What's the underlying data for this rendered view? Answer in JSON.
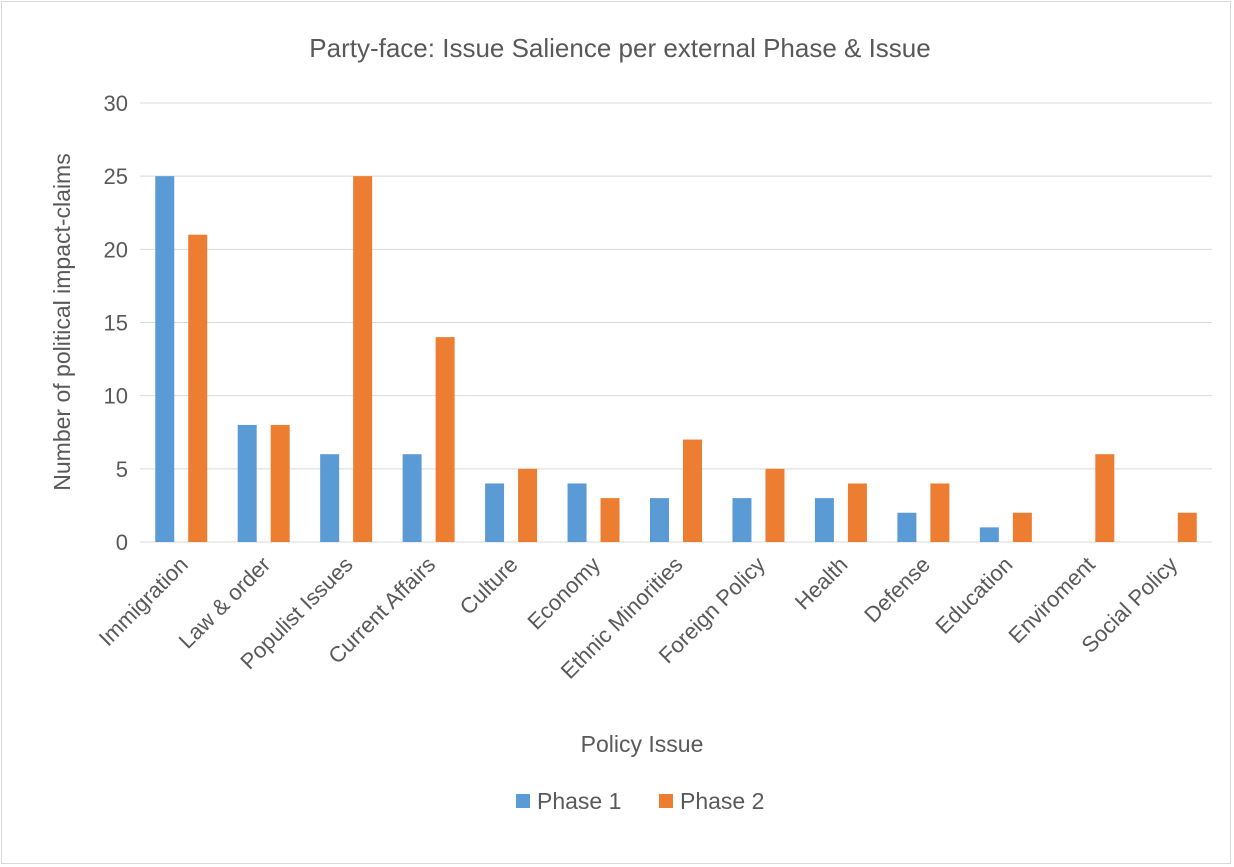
{
  "chart_data": {
    "type": "bar",
    "title": "Party-face: Issue Salience per external Phase & Issue",
    "xlabel": "Policy Issue",
    "ylabel": "Number of political impact-claims",
    "ylim": [
      0,
      30
    ],
    "yticks": [
      0,
      5,
      10,
      15,
      20,
      25,
      30
    ],
    "grid": true,
    "legend": "bottom",
    "categories": [
      "Immigration",
      "Law & order",
      "Populist Issues",
      "Current Affairs",
      "Culture",
      "Economy",
      "Ethnic Minorities",
      "Foreign Policy",
      "Health",
      "Defense",
      "Education",
      "Enviroment",
      "Social Policy"
    ],
    "series": [
      {
        "name": "Phase 1",
        "color": "#5b9bd5",
        "values": [
          25,
          8,
          6,
          6,
          4,
          4,
          3,
          3,
          3,
          2,
          1,
          0,
          0
        ]
      },
      {
        "name": "Phase 2",
        "color": "#ed7d31",
        "values": [
          21,
          8,
          25,
          14,
          5,
          3,
          7,
          5,
          4,
          4,
          2,
          6,
          2
        ]
      }
    ]
  }
}
